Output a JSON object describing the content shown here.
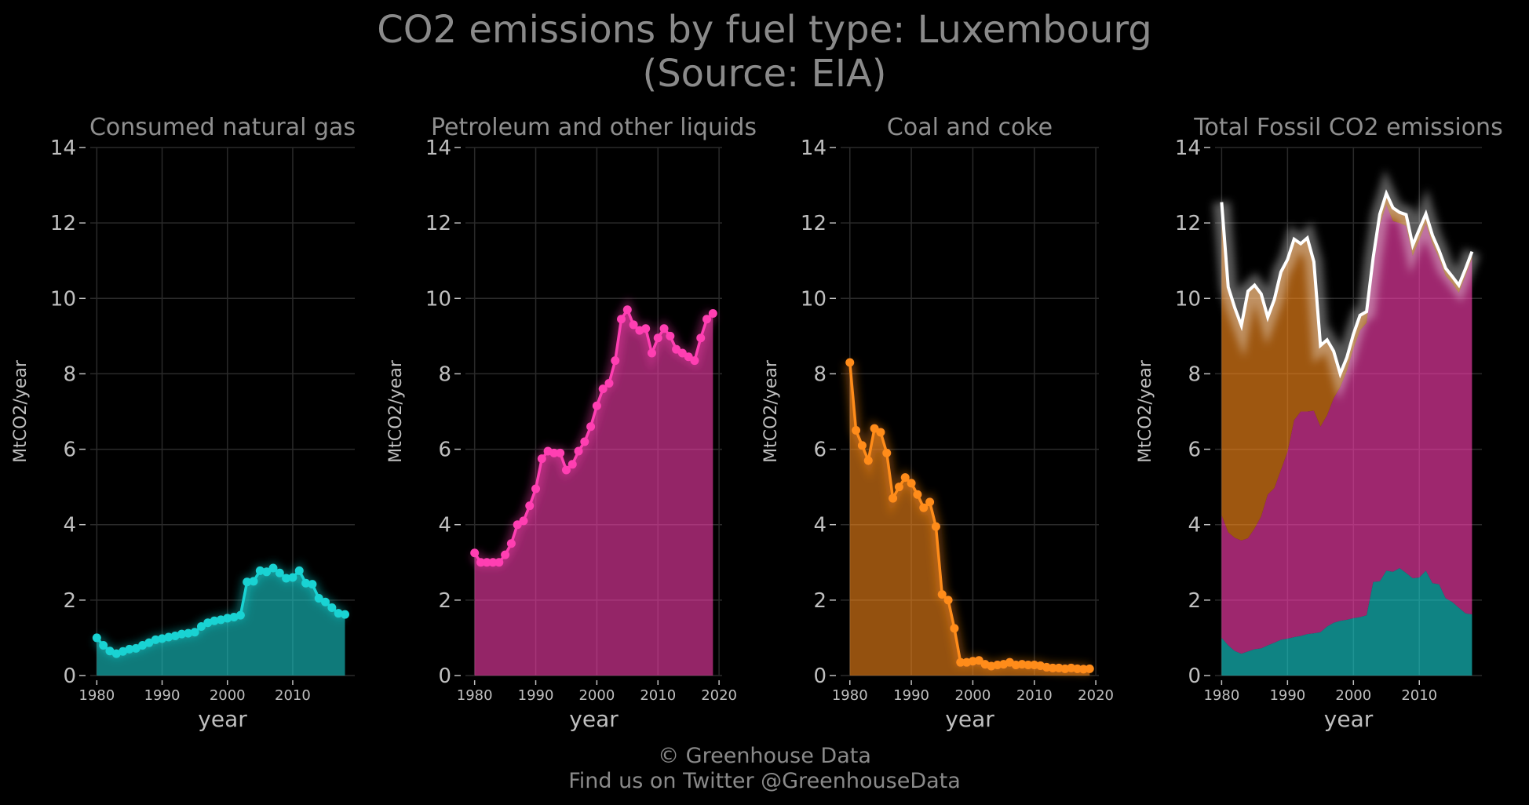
{
  "title_line1": "CO2 emissions by fuel type: Luxembourg",
  "title_line2": "(Source: EIA)",
  "footer_line1": "© Greenhouse Data",
  "footer_line2": "Find us on Twitter @GreenhouseData",
  "colors": {
    "background": "#000000",
    "grid": "#2a2a2a",
    "text": "#8f8f8f",
    "axis_text": "#bfbfbf",
    "gas": "#19d3d3",
    "petroleum": "#ff3fb2",
    "coal": "#ff8c1a",
    "total": "#ffffff"
  },
  "chart_data": [
    {
      "type": "area",
      "title": "Consumed natural gas",
      "xlabel": "year",
      "ylabel": "MtCO2/year",
      "xlim": [
        1979,
        2019.5
      ],
      "ylim": [
        0,
        14
      ],
      "xticks": [
        1980,
        1990,
        2000,
        2010
      ],
      "yticks": [
        0,
        2,
        4,
        6,
        8,
        10,
        12,
        14
      ],
      "grid": true,
      "color_key": "gas",
      "x": [
        1980,
        1981,
        1982,
        1983,
        1984,
        1985,
        1986,
        1987,
        1988,
        1989,
        1990,
        1991,
        1992,
        1993,
        1994,
        1995,
        1996,
        1997,
        1998,
        1999,
        2000,
        2001,
        2002,
        2003,
        2004,
        2005,
        2006,
        2007,
        2008,
        2009,
        2010,
        2011,
        2012,
        2013,
        2014,
        2015,
        2016,
        2017,
        2018
      ],
      "values": [
        1.0,
        0.8,
        0.65,
        0.58,
        0.64,
        0.7,
        0.72,
        0.8,
        0.87,
        0.95,
        0.98,
        1.02,
        1.05,
        1.1,
        1.12,
        1.15,
        1.3,
        1.4,
        1.45,
        1.48,
        1.52,
        1.55,
        1.6,
        2.48,
        2.5,
        2.78,
        2.75,
        2.85,
        2.72,
        2.58,
        2.6,
        2.78,
        2.45,
        2.42,
        2.05,
        1.95,
        1.8,
        1.65,
        1.62
      ]
    },
    {
      "type": "area",
      "title": "Petroleum and other liquids",
      "xlabel": "year",
      "ylabel": "MtCO2/year",
      "xlim": [
        1978.5,
        2020.5
      ],
      "ylim": [
        0,
        14
      ],
      "xticks": [
        1980,
        1990,
        2000,
        2010,
        2020
      ],
      "yticks": [
        0,
        2,
        4,
        6,
        8,
        10,
        12,
        14
      ],
      "grid": true,
      "color_key": "petroleum",
      "x": [
        1980,
        1981,
        1982,
        1983,
        1984,
        1985,
        1986,
        1987,
        1988,
        1989,
        1990,
        1991,
        1992,
        1993,
        1994,
        1995,
        1996,
        1997,
        1998,
        1999,
        2000,
        2001,
        2002,
        2003,
        2004,
        2005,
        2006,
        2007,
        2008,
        2009,
        2010,
        2011,
        2012,
        2013,
        2014,
        2015,
        2016,
        2017,
        2018,
        2019
      ],
      "values": [
        3.25,
        3.0,
        3.0,
        3.0,
        3.0,
        3.2,
        3.5,
        4.0,
        4.1,
        4.5,
        4.95,
        5.75,
        5.95,
        5.9,
        5.9,
        5.45,
        5.6,
        5.95,
        6.2,
        6.6,
        7.15,
        7.6,
        7.75,
        8.35,
        9.45,
        9.7,
        9.3,
        9.15,
        9.2,
        8.55,
        8.95,
        9.2,
        9.0,
        8.65,
        8.55,
        8.45,
        8.35,
        8.95,
        9.45,
        9.6
      ]
    },
    {
      "type": "area",
      "title": "Coal and coke",
      "xlabel": "year",
      "ylabel": "MtCO2/year",
      "xlim": [
        1978.5,
        2020.5
      ],
      "ylim": [
        0,
        14
      ],
      "xticks": [
        1980,
        1990,
        2000,
        2010,
        2020
      ],
      "yticks": [
        0,
        2,
        4,
        6,
        8,
        10,
        12,
        14
      ],
      "grid": true,
      "color_key": "coal",
      "x": [
        1980,
        1981,
        1982,
        1983,
        1984,
        1985,
        1986,
        1987,
        1988,
        1989,
        1990,
        1991,
        1992,
        1993,
        1994,
        1995,
        1996,
        1997,
        1998,
        1999,
        2000,
        2001,
        2002,
        2003,
        2004,
        2005,
        2006,
        2007,
        2008,
        2009,
        2010,
        2011,
        2012,
        2013,
        2014,
        2015,
        2016,
        2017,
        2018,
        2019
      ],
      "values": [
        8.3,
        6.5,
        6.1,
        5.7,
        6.55,
        6.45,
        5.9,
        4.7,
        5.0,
        5.25,
        5.1,
        4.8,
        4.45,
        4.6,
        3.95,
        2.15,
        2.0,
        1.25,
        0.35,
        0.35,
        0.38,
        0.4,
        0.3,
        0.25,
        0.28,
        0.3,
        0.35,
        0.28,
        0.3,
        0.28,
        0.28,
        0.26,
        0.22,
        0.2,
        0.2,
        0.18,
        0.2,
        0.18,
        0.17,
        0.18
      ]
    },
    {
      "type": "area",
      "title": "Total Fossil CO2 emissions",
      "xlabel": "year",
      "ylabel": "MtCO2/year",
      "xlim": [
        1979,
        2019.5
      ],
      "ylim": [
        0,
        14
      ],
      "xticks": [
        1980,
        1990,
        2000,
        2010
      ],
      "yticks": [
        0,
        2,
        4,
        6,
        8,
        10,
        12,
        14
      ],
      "grid": true,
      "stacked": true,
      "x": [
        1980,
        1981,
        1982,
        1983,
        1984,
        1985,
        1986,
        1987,
        1988,
        1989,
        1990,
        1991,
        1992,
        1993,
        1994,
        1995,
        1996,
        1997,
        1998,
        1999,
        2000,
        2001,
        2002,
        2003,
        2004,
        2005,
        2006,
        2007,
        2008,
        2009,
        2010,
        2011,
        2012,
        2013,
        2014,
        2015,
        2016,
        2017,
        2018
      ],
      "series": [
        {
          "color_key": "gas",
          "values": [
            1.0,
            0.8,
            0.65,
            0.58,
            0.64,
            0.7,
            0.72,
            0.8,
            0.87,
            0.95,
            0.98,
            1.02,
            1.05,
            1.1,
            1.12,
            1.15,
            1.3,
            1.4,
            1.45,
            1.48,
            1.52,
            1.55,
            1.6,
            2.48,
            2.5,
            2.78,
            2.75,
            2.85,
            2.72,
            2.58,
            2.6,
            2.78,
            2.45,
            2.42,
            2.05,
            1.95,
            1.8,
            1.65,
            1.62
          ]
        },
        {
          "color_key": "petroleum",
          "values": [
            3.25,
            3.0,
            3.0,
            3.0,
            3.0,
            3.2,
            3.5,
            4.0,
            4.1,
            4.5,
            4.95,
            5.75,
            5.95,
            5.9,
            5.9,
            5.45,
            5.6,
            5.95,
            6.2,
            6.6,
            7.15,
            7.6,
            7.75,
            8.35,
            9.45,
            9.7,
            9.3,
            9.15,
            9.2,
            8.55,
            8.95,
            9.2,
            9.0,
            8.65,
            8.55,
            8.45,
            8.35,
            8.95,
            9.45
          ]
        },
        {
          "color_key": "coal",
          "values": [
            8.3,
            6.5,
            6.1,
            5.7,
            6.55,
            6.45,
            5.9,
            4.7,
            5.0,
            5.25,
            5.1,
            4.8,
            4.45,
            4.6,
            3.95,
            2.15,
            2.0,
            1.25,
            0.35,
            0.35,
            0.38,
            0.4,
            0.3,
            0.25,
            0.28,
            0.3,
            0.35,
            0.28,
            0.3,
            0.28,
            0.28,
            0.26,
            0.22,
            0.2,
            0.2,
            0.18,
            0.2,
            0.18,
            0.17
          ]
        }
      ]
    }
  ]
}
